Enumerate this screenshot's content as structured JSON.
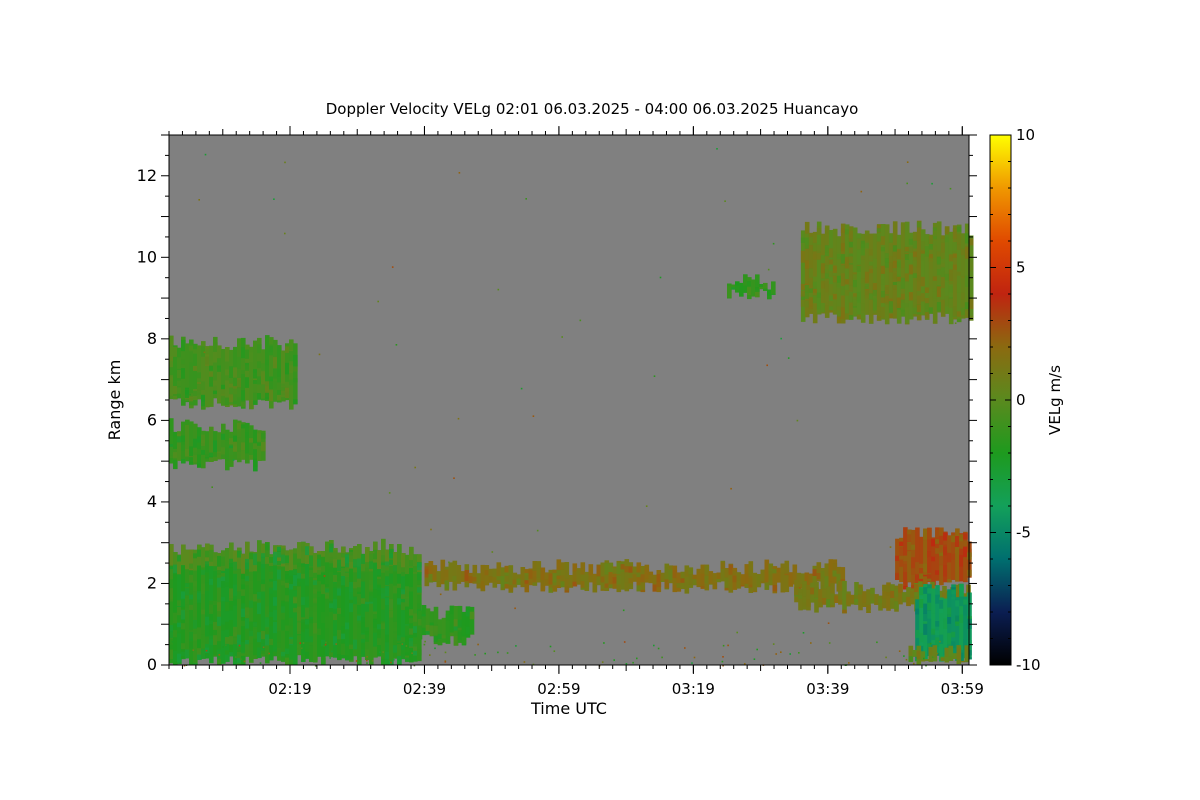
{
  "chart_data": {
    "type": "heatmap",
    "title": "Doppler Velocity VELg   02:01 06.03.2025 - 04:00 06.03.2025 Huancayo",
    "xlabel": "Time UTC",
    "ylabel": "Range km",
    "colorbar_label": "VELg m/s",
    "x_range_minutes_utc": [
      121,
      240
    ],
    "x_ticks": [
      {
        "label": "02:19",
        "minute": 139
      },
      {
        "label": "02:39",
        "minute": 159
      },
      {
        "label": "02:59",
        "minute": 179
      },
      {
        "label": "03:19",
        "minute": 199
      },
      {
        "label": "03:39",
        "minute": 219
      },
      {
        "label": "03:59",
        "minute": 239
      }
    ],
    "ylim": [
      0,
      13
    ],
    "y_ticks": [
      0,
      2,
      4,
      6,
      8,
      10,
      12
    ],
    "color_range": [
      -10,
      10
    ],
    "colorbar_ticks": [
      -10,
      -5,
      0,
      5,
      10
    ],
    "no_echo_color": "#808080",
    "colormap": [
      "#000000",
      "#0b1e52",
      "#006f6f",
      "#13a05a",
      "#1e9a1e",
      "#5a8a1e",
      "#8b6a10",
      "#c02410",
      "#e04a00",
      "#f09800",
      "#ffff00"
    ],
    "echo_regions": [
      {
        "name": "low-level echo",
        "t0": 121,
        "t1": 158,
        "r0": 0.1,
        "r1": 2.9,
        "velocity": -1.8,
        "top_velocity": -0.3
      },
      {
        "name": "low-level echo tail",
        "t0": 158,
        "t1": 166,
        "r0": 0.6,
        "r1": 1.3,
        "velocity": -1.5
      },
      {
        "name": "layer 6 km",
        "t0": 121,
        "t1": 135,
        "r0": 4.9,
        "r1": 5.9,
        "velocity": -1.2
      },
      {
        "name": "layer 7 km",
        "t0": 121,
        "t1": 140,
        "r0": 6.4,
        "r1": 7.9,
        "velocity": -0.8
      },
      {
        "name": "thin layer 2 km",
        "t0": 159,
        "t1": 221,
        "r0": 1.9,
        "r1": 2.4,
        "velocity": 1.5
      },
      {
        "name": "upper cloud 10 km",
        "t0": 215,
        "t1": 240,
        "r0": 8.5,
        "r1": 10.7,
        "velocity": 0.5
      },
      {
        "name": "upper fragment",
        "t0": 204,
        "t1": 211,
        "r0": 9.1,
        "r1": 9.4,
        "velocity": -1.5
      },
      {
        "name": "convective top",
        "t0": 229,
        "t1": 240,
        "r0": 2.0,
        "r1": 3.2,
        "velocity": 2.8
      },
      {
        "name": "mid layer 1.6 km",
        "t0": 214,
        "t1": 240,
        "r0": 1.4,
        "r1": 1.9,
        "velocity": 1.0
      },
      {
        "name": "downdraft",
        "t0": 232,
        "t1": 240,
        "r0": 0.2,
        "r1": 1.8,
        "velocity": -4.2
      },
      {
        "name": "surface strip",
        "t0": 231,
        "t1": 240,
        "r0": 0.15,
        "r1": 0.3,
        "velocity": 0.3
      }
    ]
  }
}
